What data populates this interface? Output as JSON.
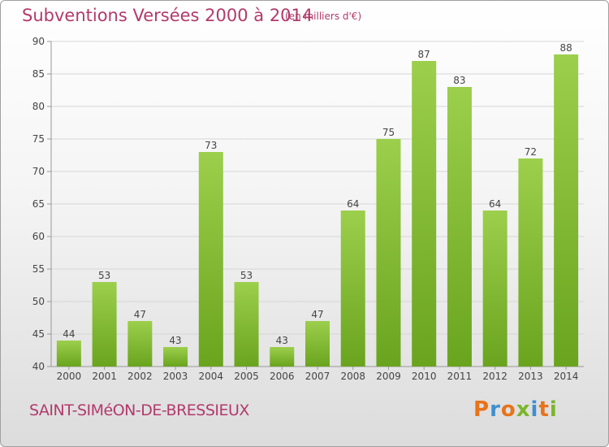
{
  "header": {
    "title": "Subventions Versées 2000 à 2014",
    "subtitle": "(en milliers d'€)"
  },
  "footer": {
    "commune": "SAINT-SIMéON-DE-BRESSIEUX",
    "logo_text": "Proxiti"
  },
  "colors": {
    "accent": "#b23a6b",
    "bar_light": "#9ccf4c",
    "bar_dark": "#6aa41e",
    "logo_letters": [
      "#e8731a",
      "#3f8fd0",
      "#e8731a",
      "#7ab62a",
      "#3f8fd0",
      "#e8731a",
      "#7ab62a"
    ]
  },
  "chart_data": {
    "type": "bar",
    "title": "Subventions Versées 2000 à 2014",
    "subtitle": "(en milliers d'€)",
    "xlabel": "",
    "ylabel": "",
    "categories": [
      "2000",
      "2001",
      "2002",
      "2003",
      "2004",
      "2005",
      "2006",
      "2007",
      "2008",
      "2009",
      "2010",
      "2011",
      "2012",
      "2013",
      "2014"
    ],
    "values": [
      44,
      53,
      47,
      43,
      73,
      53,
      43,
      47,
      64,
      75,
      87,
      83,
      64,
      72,
      88
    ],
    "ylim": [
      40,
      90
    ],
    "yticks": [
      40,
      45,
      50,
      55,
      60,
      65,
      70,
      75,
      80,
      85,
      90
    ],
    "grid": true,
    "legend": "none"
  }
}
